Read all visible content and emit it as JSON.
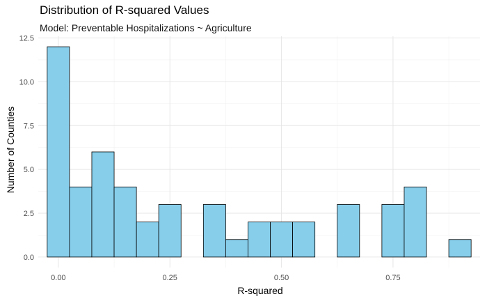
{
  "chart_data": {
    "type": "bar",
    "subtype": "histogram",
    "title": "Distribution of R-squared Values",
    "subtitle": "Model: Preventable Hospitalizations ~ Agriculture",
    "xlabel": "R-squared",
    "ylabel": "Number of Counties",
    "bin_width": 0.05,
    "bin_centers": [
      0.0,
      0.05,
      0.1,
      0.15,
      0.2,
      0.25,
      0.3,
      0.35,
      0.4,
      0.45,
      0.5,
      0.55,
      0.6,
      0.65,
      0.7,
      0.75,
      0.8,
      0.85,
      0.9
    ],
    "values": [
      12,
      4,
      6,
      4,
      2,
      3,
      0,
      3,
      1,
      2,
      2,
      2,
      0,
      3,
      0,
      3,
      4,
      0,
      1
    ],
    "xlim": [
      -0.045,
      0.945
    ],
    "ylim": [
      -0.6,
      12.6
    ],
    "x_ticks": [
      0.0,
      0.25,
      0.5,
      0.75
    ],
    "x_tick_labels": [
      "0.00",
      "0.25",
      "0.50",
      "0.75"
    ],
    "y_ticks": [
      0,
      2.5,
      5,
      7.5,
      10,
      12.5
    ],
    "y_tick_labels": [
      "0.0",
      "2.5",
      "5.0",
      "7.5",
      "10.0",
      "12.5"
    ],
    "grid": true,
    "colors": {
      "fill": "#87CEEB",
      "stroke": "#000000",
      "grid_major": "#e6e6e6",
      "grid_minor": "#f2f2f2"
    }
  }
}
